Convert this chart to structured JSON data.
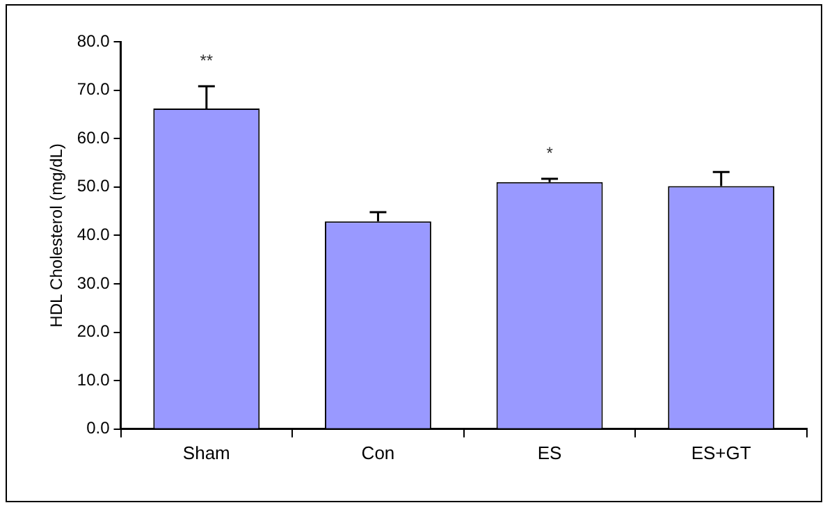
{
  "chart_data": {
    "type": "bar",
    "ylabel": "HDL Cholesterol (mg/dL)",
    "categories": [
      "Sham",
      "Con",
      "ES",
      "ES+GT"
    ],
    "values": [
      66.2,
      42.9,
      51.0,
      50.2
    ],
    "errors": [
      [
        66.2,
        70.8
      ],
      [
        42.9,
        44.8
      ],
      [
        51.0,
        51.7
      ],
      [
        50.2,
        53.1
      ]
    ],
    "color": "#9999ff",
    "ylim": [
      0,
      80
    ],
    "yticks": [
      {
        "value": 0,
        "label": "0.0"
      },
      {
        "value": 10,
        "label": "10.0"
      },
      {
        "value": 20,
        "label": "20.0"
      },
      {
        "value": 30,
        "label": "30.0"
      },
      {
        "value": 40,
        "label": "40.0"
      },
      {
        "value": 50,
        "label": "50.0"
      },
      {
        "value": 60,
        "label": "60.0"
      },
      {
        "value": 70,
        "label": "70.0"
      },
      {
        "value": 80,
        "label": "80.0"
      }
    ],
    "annotations": [
      {
        "text": "**",
        "x": "Sham",
        "y": 70.8
      },
      {
        "text": "*",
        "x": "ES",
        "y": 51.7
      }
    ],
    "grid": false,
    "legend": false
  }
}
